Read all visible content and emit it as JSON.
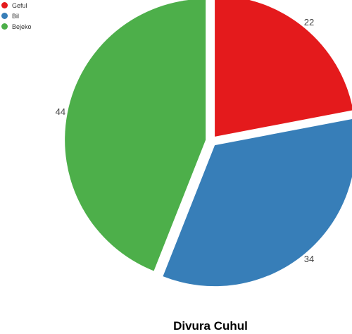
{
  "chart_data": {
    "type": "pie",
    "title": "Divura Cuhul",
    "series": [
      {
        "name": "Geful",
        "value": 22,
        "color": "#e41a1c"
      },
      {
        "name": "Bil",
        "value": 34,
        "color": "#377eb8"
      },
      {
        "name": "Bejeko",
        "value": 44,
        "color": "#4daf4a"
      }
    ],
    "legend_position": "top-left",
    "exploded": true
  }
}
